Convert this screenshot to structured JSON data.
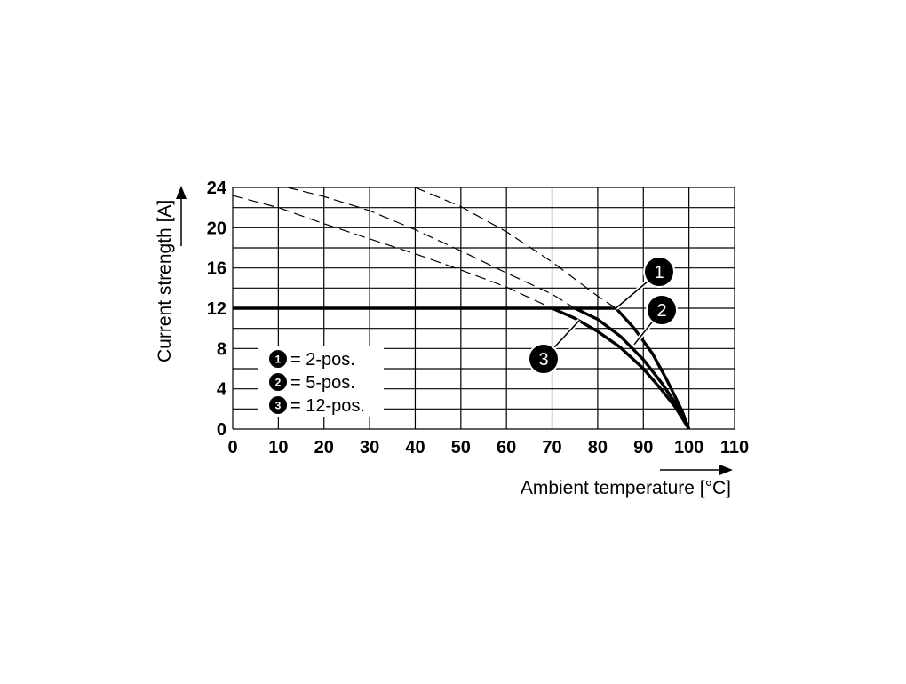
{
  "chart_data": {
    "type": "line",
    "xlabel": "Ambient temperature [°C]",
    "ylabel": "Current strength [A]",
    "xlim": [
      0,
      110
    ],
    "ylim": [
      0,
      24
    ],
    "x_ticks": [
      "0",
      "10",
      "20",
      "30",
      "40",
      "50",
      "60",
      "70",
      "80",
      "90",
      "100",
      "110"
    ],
    "y_ticks": [
      "0",
      "4",
      "8",
      "12",
      "16",
      "20",
      "24"
    ],
    "grid": true,
    "legend_position": "bottom-left",
    "legend": [
      {
        "num": "1",
        "label": "= 2-pos."
      },
      {
        "num": "2",
        "label": "= 5-pos."
      },
      {
        "num": "3",
        "label": "= 12-pos."
      }
    ],
    "series": [
      {
        "id": "1",
        "style": "solid",
        "points": [
          [
            0,
            12
          ],
          [
            84,
            12
          ],
          [
            88,
            10
          ],
          [
            92,
            7.5
          ],
          [
            95,
            5
          ],
          [
            97,
            3.2
          ],
          [
            98.5,
            1.8
          ],
          [
            100,
            0
          ]
        ]
      },
      {
        "id": "2",
        "style": "solid",
        "points": [
          [
            75,
            12
          ],
          [
            80,
            10.9
          ],
          [
            85,
            9.2
          ],
          [
            90,
            6.9
          ],
          [
            94,
            4.6
          ],
          [
            97,
            2.6
          ],
          [
            100,
            0
          ]
        ]
      },
      {
        "id": "3",
        "style": "solid",
        "points": [
          [
            70,
            12
          ],
          [
            75,
            11
          ],
          [
            80,
            9.7
          ],
          [
            85,
            8.1
          ],
          [
            90,
            6
          ],
          [
            94,
            3.9
          ],
          [
            97,
            2.2
          ],
          [
            100,
            0
          ]
        ]
      },
      {
        "id": "1-dashed",
        "style": "dashed",
        "points": [
          [
            40,
            24
          ],
          [
            50,
            22.1
          ],
          [
            60,
            19.6
          ],
          [
            70,
            16.6
          ],
          [
            80,
            13.2
          ],
          [
            84,
            12
          ]
        ]
      },
      {
        "id": "2-dashed",
        "style": "dashed",
        "points": [
          [
            12,
            24
          ],
          [
            20,
            23.1
          ],
          [
            30,
            21.7
          ],
          [
            40,
            19.8
          ],
          [
            50,
            17.7
          ],
          [
            60,
            15.5
          ],
          [
            70,
            13.4
          ],
          [
            75,
            12
          ]
        ]
      },
      {
        "id": "3-dashed",
        "style": "dashed",
        "points": [
          [
            0,
            23.2
          ],
          [
            10,
            22
          ],
          [
            20,
            20.4
          ],
          [
            30,
            18.9
          ],
          [
            40,
            17.4
          ],
          [
            50,
            15.8
          ],
          [
            60,
            14.1
          ],
          [
            70,
            12
          ]
        ]
      }
    ],
    "callouts": [
      {
        "num": "1",
        "target": [
          84,
          12
        ]
      },
      {
        "num": "2",
        "target": [
          88,
          8.4
        ]
      },
      {
        "num": "3",
        "target": [
          76,
          10.8
        ]
      }
    ]
  }
}
